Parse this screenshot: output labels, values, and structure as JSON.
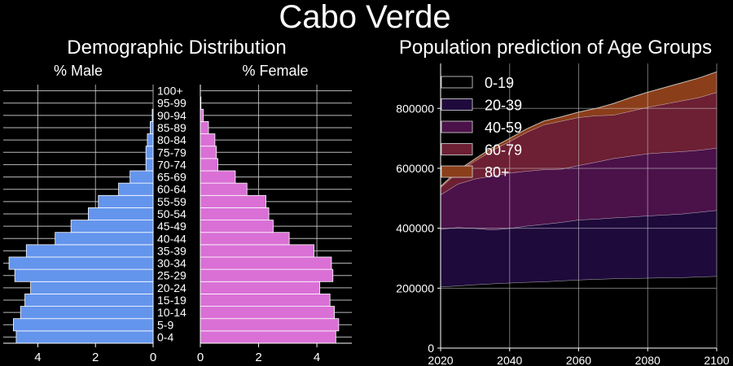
{
  "figure": {
    "title": "Cabo Verde"
  },
  "chart_data": [
    {
      "type": "bar",
      "orientation": "horizontal",
      "title": "Demographic Distribution",
      "age_groups": [
        "0-4",
        "5-9",
        "10-14",
        "15-19",
        "20-24",
        "25-29",
        "30-34",
        "35-39",
        "40-44",
        "45-49",
        "50-54",
        "55-59",
        "60-64",
        "65-69",
        "70-74",
        "75-79",
        "80-84",
        "85-89",
        "90-94",
        "95-99",
        "100+"
      ],
      "series": [
        {
          "name": "% Male",
          "color": "#6495ED",
          "values": [
            4.75,
            4.85,
            4.6,
            4.45,
            4.25,
            4.8,
            5.0,
            4.4,
            3.4,
            2.85,
            2.25,
            1.9,
            1.2,
            0.8,
            0.25,
            0.25,
            0.2,
            0.1,
            0.03,
            0.0,
            0.0
          ],
          "xlim": [
            5.2,
            0
          ],
          "xticks": [
            4,
            2,
            0
          ]
        },
        {
          "name": "% Female",
          "color": "#DA70D6",
          "values": [
            4.65,
            4.75,
            4.6,
            4.45,
            4.1,
            4.55,
            4.5,
            3.9,
            3.05,
            2.5,
            2.35,
            2.25,
            1.6,
            1.2,
            0.6,
            0.55,
            0.5,
            0.28,
            0.1,
            0.02,
            0.0
          ],
          "xlim": [
            0,
            5.2
          ],
          "xticks": [
            0,
            2,
            4
          ]
        }
      ]
    },
    {
      "type": "area",
      "stacked": true,
      "title": "Population prediction of Age Groups",
      "x": [
        2020,
        2025,
        2030,
        2035,
        2040,
        2045,
        2050,
        2055,
        2060,
        2065,
        2070,
        2075,
        2080,
        2085,
        2090,
        2095,
        2100
      ],
      "xlim": [
        2020,
        2100
      ],
      "ylim": [
        0,
        950000
      ],
      "xticks": [
        2020,
        2040,
        2060,
        2080,
        2100
      ],
      "yticks": [
        0,
        200000,
        400000,
        600000,
        800000
      ],
      "legend_position": "top-left",
      "grid": true,
      "series": [
        {
          "name": "0-19",
          "color": "#000000",
          "values": [
            205000,
            208000,
            212000,
            215000,
            218000,
            220000,
            222000,
            225000,
            228000,
            230000,
            232000,
            233000,
            234000,
            235000,
            236000,
            238000,
            240000
          ]
        },
        {
          "name": "20-39",
          "color": "#1F0A3C",
          "values": [
            192000,
            195000,
            188000,
            180000,
            182000,
            188000,
            192000,
            195000,
            200000,
            201000,
            203000,
            205000,
            208000,
            210000,
            212000,
            216000,
            220000
          ]
        },
        {
          "name": "40-59",
          "color": "#4B1249",
          "values": [
            115000,
            145000,
            165000,
            180000,
            185000,
            183000,
            182000,
            178000,
            182000,
            190000,
            198000,
            203000,
            207000,
            208000,
            208000,
            207000,
            208000
          ]
        },
        {
          "name": "60-79",
          "color": "#6D1F33",
          "values": [
            24000,
            40000,
            60000,
            85000,
            105000,
            130000,
            150000,
            160000,
            160000,
            155000,
            145000,
            150000,
            155000,
            162000,
            170000,
            176000,
            186000
          ]
        },
        {
          "name": "80+",
          "color": "#8B3E1A",
          "values": [
            4000,
            5000,
            7000,
            9000,
            10000,
            11000,
            12000,
            14000,
            18000,
            24000,
            38000,
            45000,
            50000,
            55000,
            60000,
            65000,
            68000
          ]
        }
      ]
    }
  ]
}
